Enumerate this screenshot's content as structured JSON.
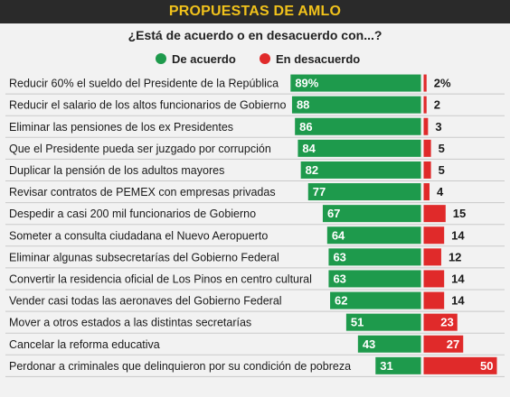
{
  "header": {
    "title": "PROPUESTAS DE AMLO"
  },
  "colors": {
    "agree": "#1e9a4c",
    "disagree": "#e02a2a"
  },
  "chart_data": {
    "type": "bar",
    "title": "¿Está de acuerdo o en desacuerdo con...?",
    "legend": [
      "De acuerdo",
      "En desacuerdo"
    ],
    "categories": [
      "Reducir 60% el sueldo del Presidente de la República",
      "Reducir el salario de los altos funcionarios de Gobierno",
      "Eliminar las pensiones de los ex Presidentes",
      "Que el Presidente pueda ser juzgado por corrupción",
      "Duplicar la pensión de los adultos mayores",
      "Revisar contratos de PEMEX con empresas privadas",
      "Despedir a casi 200 mil funcionarios de Gobierno",
      "Someter a consulta ciudadana el Nuevo Aeropuerto",
      "Eliminar algunas subsecretarías del Gobierno Federal",
      "Convertir la residencia oficial de Los Pinos en centro cultural",
      "Vender casi todas las aeronaves del Gobierno Federal",
      "Mover a otros estados a las distintas secretarías",
      "Cancelar la reforma educativa",
      "Perdonar a criminales que delinquieron por su condición de pobreza"
    ],
    "series": [
      {
        "name": "De acuerdo",
        "values": [
          89,
          88,
          86,
          84,
          82,
          77,
          67,
          64,
          63,
          63,
          62,
          51,
          43,
          31
        ]
      },
      {
        "name": "En desacuerdo",
        "values": [
          2,
          2,
          3,
          5,
          5,
          4,
          15,
          14,
          12,
          14,
          14,
          23,
          27,
          50
        ]
      }
    ],
    "value_labels_agree": [
      "89%",
      "88",
      "86",
      "84",
      "82",
      "77",
      "67",
      "64",
      "63",
      "63",
      "62",
      "51",
      "43",
      "31"
    ],
    "value_labels_disagree": [
      "2%",
      "2",
      "3",
      "5",
      "5",
      "4",
      "15",
      "14",
      "12",
      "14",
      "14",
      "23",
      "27",
      "50"
    ]
  }
}
